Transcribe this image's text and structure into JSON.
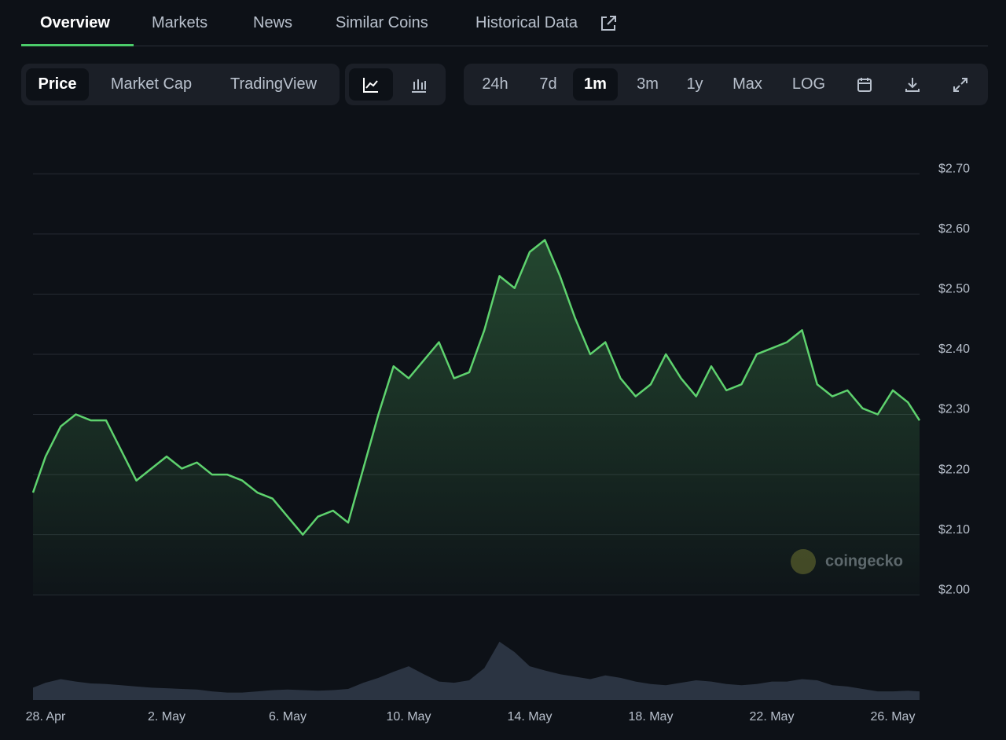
{
  "tabs": [
    "Overview",
    "Markets",
    "News",
    "Similar Coins",
    "Historical Data"
  ],
  "toolbar": {
    "modes": [
      "Price",
      "Market Cap",
      "TradingView"
    ],
    "ranges": [
      "24h",
      "7d",
      "1m",
      "3m",
      "1y",
      "Max",
      "LOG"
    ]
  },
  "watermark": "coingecko",
  "chart_data": {
    "type": "line",
    "color": "#5ed26e",
    "categories": [
      null,
      "28. Apr",
      null,
      null,
      null,
      null,
      null,
      null,
      null,
      "2. May",
      null,
      null,
      null,
      null,
      null,
      null,
      null,
      "6. May",
      null,
      null,
      null,
      null,
      null,
      null,
      null,
      "10. May",
      null,
      null,
      null,
      null,
      null,
      null,
      null,
      "14. May",
      null,
      null,
      null,
      null,
      null,
      null,
      null,
      "18. May",
      null,
      null,
      null,
      null,
      null,
      null,
      null,
      "22. May",
      null,
      null,
      null,
      null,
      null,
      null,
      null,
      "26. May",
      null,
      null
    ],
    "values": [
      2.17,
      2.23,
      2.28,
      2.3,
      2.29,
      2.29,
      2.24,
      2.19,
      2.21,
      2.23,
      2.21,
      2.22,
      2.2,
      2.2,
      2.19,
      2.17,
      2.16,
      2.13,
      2.1,
      2.13,
      2.14,
      2.12,
      2.21,
      2.3,
      2.38,
      2.36,
      2.39,
      2.42,
      2.36,
      2.37,
      2.44,
      2.53,
      2.51,
      2.57,
      2.59,
      2.53,
      2.46,
      2.4,
      2.42,
      2.36,
      2.33,
      2.35,
      2.4,
      2.36,
      2.33,
      2.38,
      2.34,
      2.35,
      2.4,
      2.41,
      2.42,
      2.44,
      2.35,
      2.33,
      2.34,
      2.31,
      2.3,
      2.34,
      2.32,
      2.29
    ],
    "volume": [
      20,
      28,
      34,
      30,
      27,
      26,
      24,
      22,
      20,
      19,
      18,
      17,
      14,
      12,
      12,
      14,
      16,
      17,
      16,
      15,
      16,
      18,
      28,
      36,
      46,
      55,
      42,
      30,
      28,
      32,
      52,
      95,
      78,
      55,
      48,
      42,
      38,
      34,
      40,
      36,
      30,
      26,
      24,
      28,
      32,
      30,
      26,
      24,
      26,
      30,
      30,
      34,
      32,
      24,
      22,
      18,
      14,
      14,
      15,
      14
    ],
    "ylim": [
      1.82,
      2.78
    ],
    "y2lim": [
      0,
      100
    ],
    "yticks": [
      {
        "value": 2.0,
        "label": "$2.00"
      },
      {
        "value": 2.1,
        "label": "$2.10"
      },
      {
        "value": 2.2,
        "label": "$2.20"
      },
      {
        "value": 2.3,
        "label": "$2.30"
      },
      {
        "value": 2.4,
        "label": "$2.40"
      },
      {
        "value": 2.5,
        "label": "$2.50"
      },
      {
        "value": 2.6,
        "label": "$2.60"
      },
      {
        "value": 2.7,
        "label": "$2.70"
      }
    ],
    "grid": true
  }
}
